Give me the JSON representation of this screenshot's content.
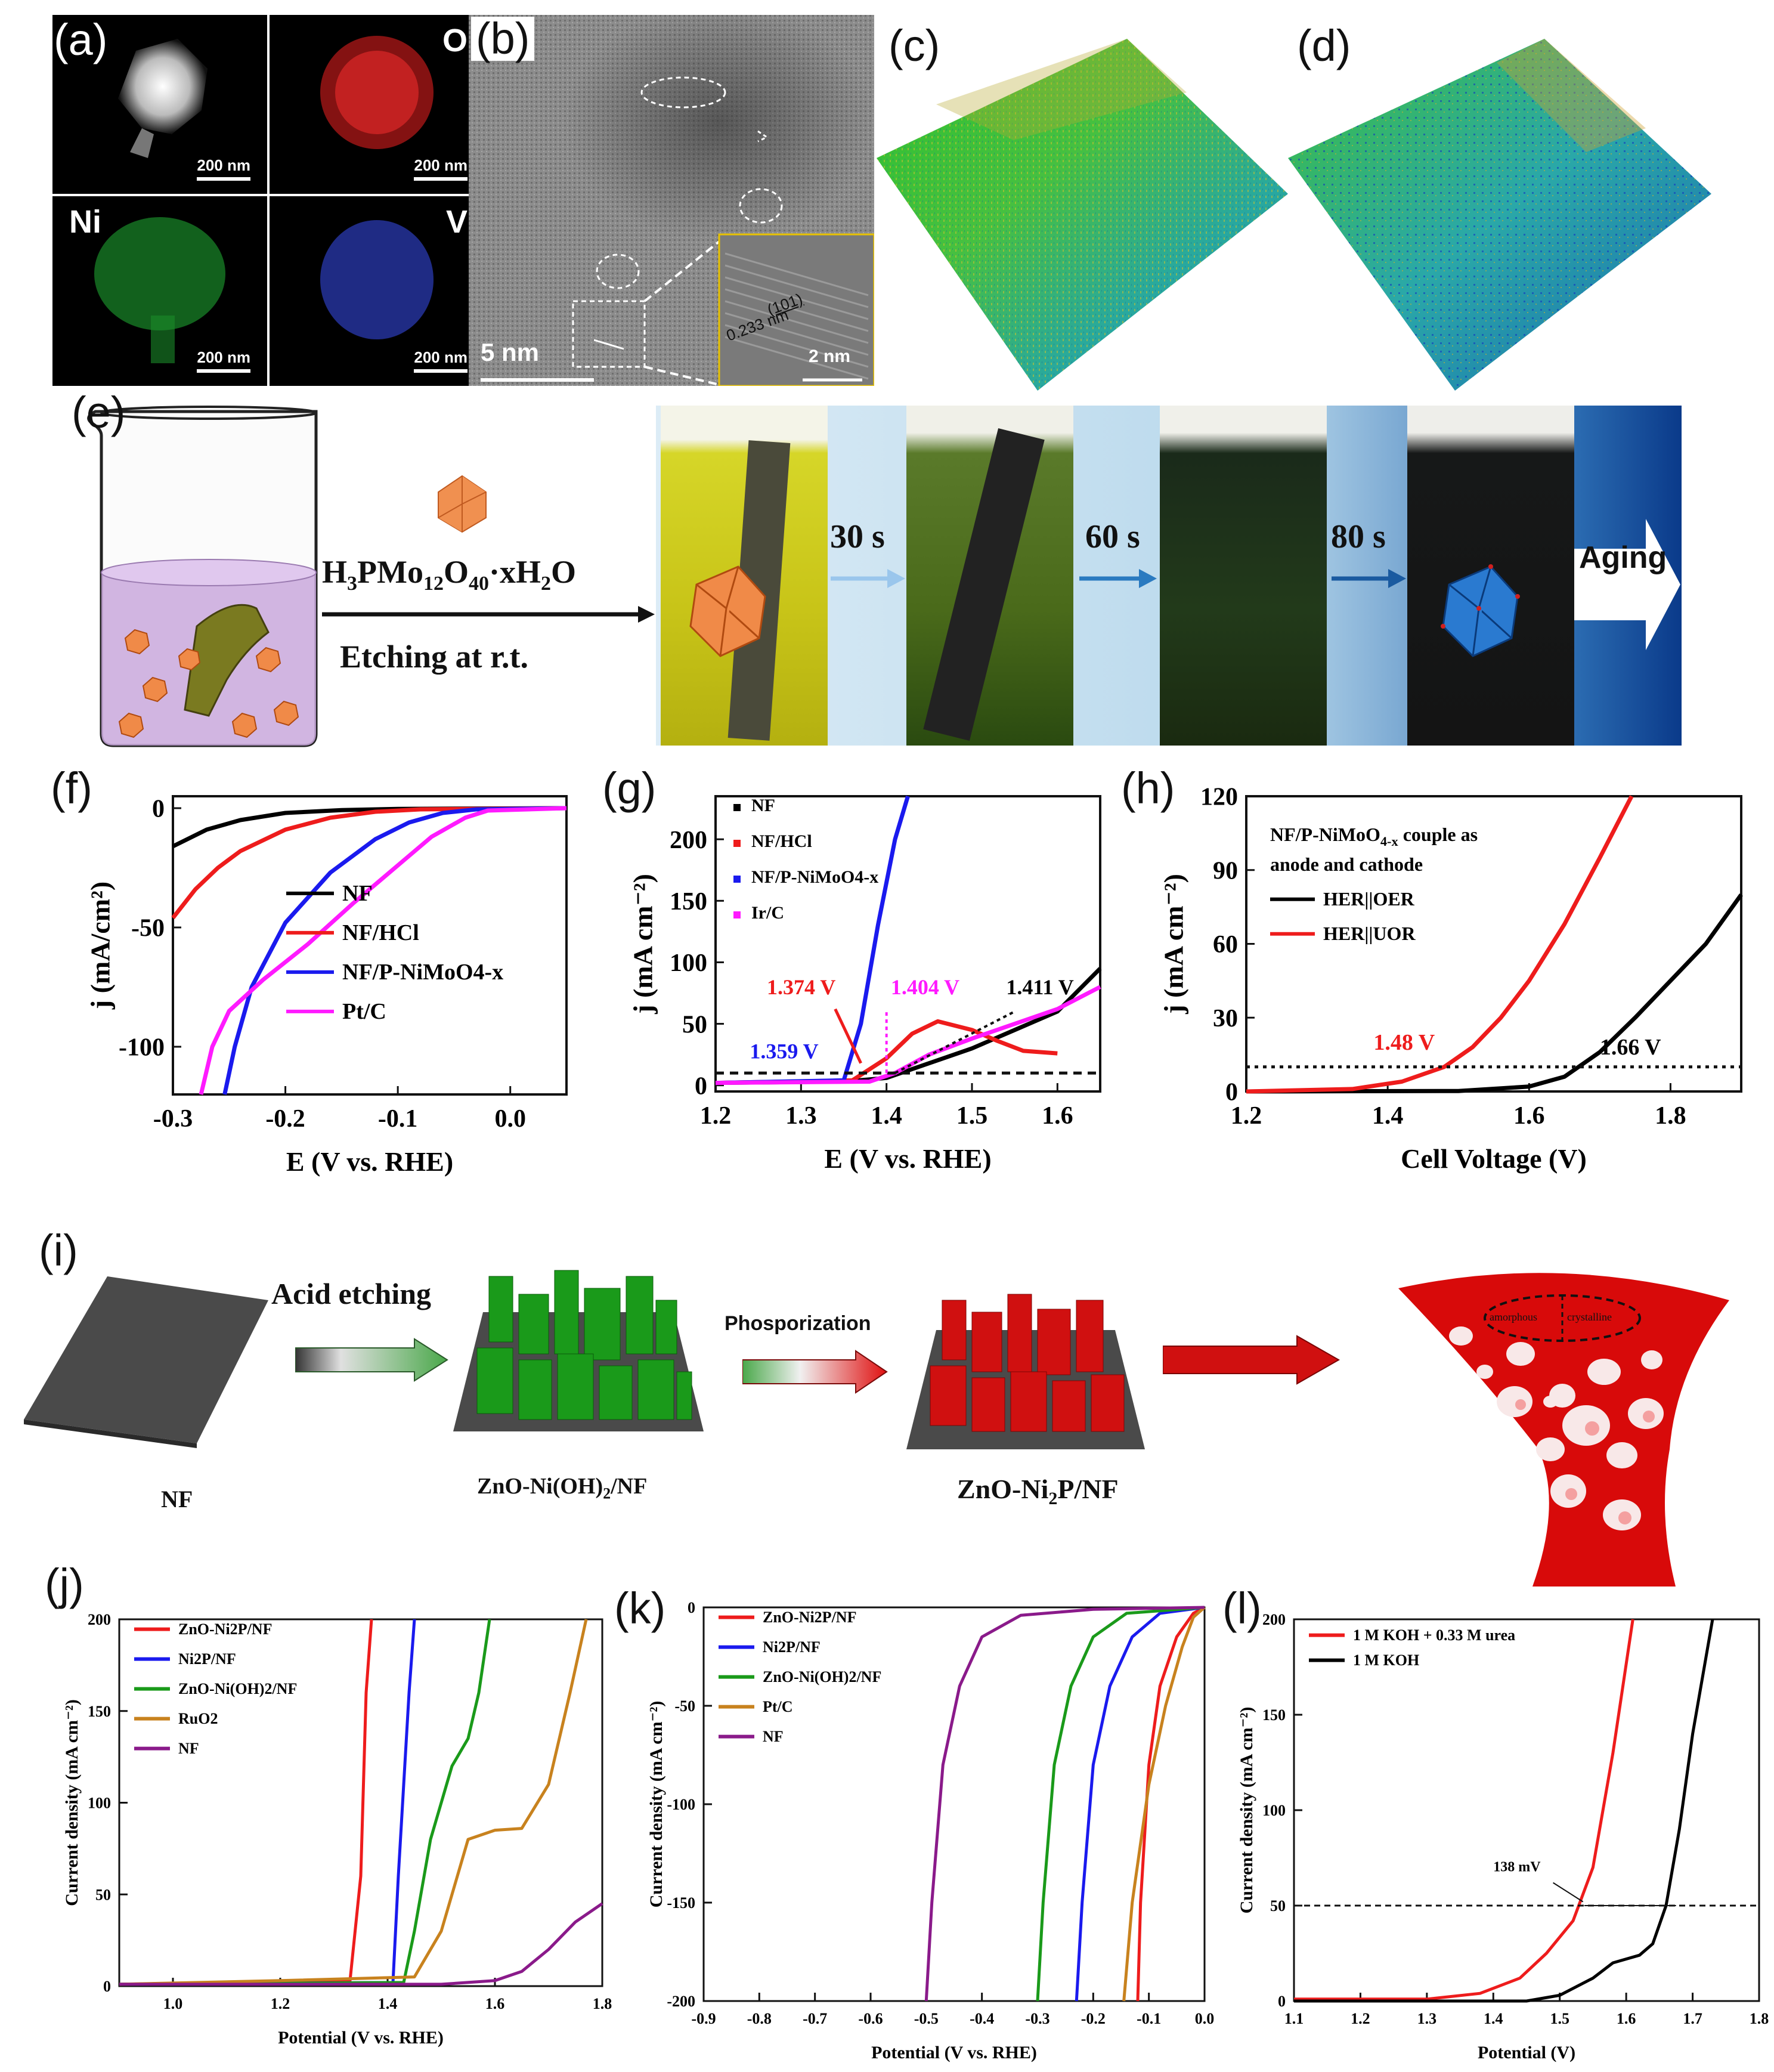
{
  "panels": {
    "a": {
      "label": "(a)",
      "elements": [
        "O",
        "Ni",
        "V"
      ],
      "scale_bar": "200 nm"
    },
    "b": {
      "label": "(b)",
      "scale_bar": "5 nm",
      "inset_scale": "2 nm",
      "plane": "(101)",
      "spacing": "0.233 nm"
    },
    "c": {
      "label": "(c)"
    },
    "d": {
      "label": "(d)"
    },
    "e": {
      "label": "(e)",
      "reagent_main": "H",
      "reagent_sub1": "3",
      "reagent_mid1": "PMo",
      "reagent_sub2": "12",
      "reagent_mid2": "O",
      "reagent_sub3": "40",
      "reagent_tail": "·xH",
      "reagent_sub4": "2",
      "reagent_end": "O",
      "condition": "Etching at r.t.",
      "times": [
        "30 s",
        "60 s",
        "80 s"
      ],
      "final": "Aging"
    },
    "f": {
      "label": "(f)"
    },
    "g": {
      "label": "(g)"
    },
    "h": {
      "label": "(h)"
    },
    "i": {
      "label": "(i)",
      "step1": "Acid etching",
      "step2": "Phosporization",
      "nf": "NF",
      "mid_lhs": "ZnO-Ni(OH)",
      "mid_sub": "2",
      "mid_rhs": "/NF",
      "final_lhs": "ZnO-Ni",
      "final_sub": "2",
      "final_rhs": "P/NF",
      "amorphous": "amorphous",
      "crystalline": "crystalline"
    },
    "j": {
      "label": "(j)"
    },
    "k": {
      "label": "(k)"
    },
    "l": {
      "label": "(l)"
    }
  },
  "colors": {
    "black": "#000000",
    "red": "#ee1c1c",
    "blue": "#1a1aee",
    "magenta": "#ff1aff",
    "green": "#1a9a1a",
    "gold": "#c8821e",
    "purple": "#8a1a8a"
  },
  "chart_data": [
    {
      "id": "f",
      "type": "line",
      "xlabel": "E (V vs. RHE)",
      "ylabel": "j (mA/cm²)",
      "xlim": [
        -0.3,
        0.05
      ],
      "ylim": [
        -120,
        5
      ],
      "xticks": [
        "-0.3",
        "-0.2",
        "-0.1",
        "0.0"
      ],
      "yticks": [
        "0",
        "-50",
        "-100"
      ],
      "series": [
        {
          "name": "NF",
          "color": "black",
          "x": [
            -0.3,
            -0.27,
            -0.24,
            -0.2,
            -0.15,
            -0.1,
            0.05
          ],
          "y": [
            -16,
            -9,
            -5,
            -2,
            -0.8,
            -0.3,
            0
          ]
        },
        {
          "name": "NF/HCl",
          "color": "red",
          "x": [
            -0.3,
            -0.28,
            -0.26,
            -0.24,
            -0.2,
            -0.16,
            -0.12,
            -0.08,
            0.05
          ],
          "y": [
            -46,
            -34,
            -25,
            -18,
            -9,
            -4,
            -1.5,
            -0.5,
            0
          ]
        },
        {
          "name": "NF/P-NiMoO4-x",
          "color": "blue",
          "x": [
            -0.254,
            -0.245,
            -0.23,
            -0.2,
            -0.16,
            -0.12,
            -0.09,
            -0.06,
            -0.03,
            0.05
          ],
          "y": [
            -120,
            -100,
            -75,
            -48,
            -27,
            -13,
            -6,
            -2,
            -0.5,
            0
          ]
        },
        {
          "name": "Pt/C",
          "color": "magenta",
          "x": [
            -0.275,
            -0.265,
            -0.25,
            -0.22,
            -0.18,
            -0.14,
            -0.1,
            -0.07,
            -0.04,
            -0.02,
            0.05
          ],
          "y": [
            -120,
            -100,
            -85,
            -72,
            -57,
            -40,
            -24,
            -12,
            -4,
            -1,
            0
          ]
        }
      ]
    },
    {
      "id": "g",
      "type": "line",
      "xlabel": "E (V vs. RHE)",
      "ylabel": "j (mA cm⁻²)",
      "xlim": [
        1.2,
        1.65
      ],
      "ylim": [
        -5,
        235
      ],
      "xticks": [
        "1.2",
        "1.3",
        "1.4",
        "1.5",
        "1.6"
      ],
      "yticks": [
        "0",
        "50",
        "100",
        "150",
        "200"
      ],
      "annotations": [
        {
          "text": "1.359 V",
          "color": "blue"
        },
        {
          "text": "1.374 V",
          "color": "red"
        },
        {
          "text": "1.404 V",
          "color": "magenta"
        },
        {
          "text": "1.411 V",
          "color": "black"
        }
      ],
      "series": [
        {
          "name": "NF",
          "color": "black",
          "x": [
            1.2,
            1.35,
            1.4,
            1.45,
            1.5,
            1.55,
            1.6,
            1.65
          ],
          "y": [
            2,
            3,
            6,
            18,
            30,
            45,
            60,
            95
          ]
        },
        {
          "name": "NF/HCl",
          "color": "red",
          "x": [
            1.2,
            1.36,
            1.4,
            1.43,
            1.46,
            1.5,
            1.53,
            1.56,
            1.6
          ],
          "y": [
            2,
            4,
            22,
            42,
            52,
            45,
            36,
            28,
            26
          ]
        },
        {
          "name": "NF/P-NiMoO4-x",
          "color": "blue",
          "x": [
            1.2,
            1.35,
            1.37,
            1.39,
            1.41,
            1.425
          ],
          "y": [
            2,
            4,
            50,
            130,
            200,
            238
          ]
        },
        {
          "name": "Ir/C",
          "color": "magenta",
          "x": [
            1.2,
            1.38,
            1.41,
            1.45,
            1.5,
            1.55,
            1.6,
            1.65
          ],
          "y": [
            2,
            3,
            10,
            25,
            38,
            50,
            62,
            80
          ]
        }
      ]
    },
    {
      "id": "h",
      "type": "line",
      "xlabel": "Cell Voltage (V)",
      "ylabel": "j (mA cm⁻²)",
      "xlim": [
        1.2,
        1.9
      ],
      "ylim": [
        0,
        120
      ],
      "xticks": [
        "1.2",
        "1.4",
        "1.6",
        "1.8"
      ],
      "yticks": [
        "0",
        "30",
        "60",
        "90",
        "120"
      ],
      "legend_title": [
        "NF/P-NiMoO",
        "4-x",
        " couple as",
        "anode and cathode"
      ],
      "annotations": [
        {
          "text": "1.48 V",
          "color": "red"
        },
        {
          "text": "1.66 V",
          "color": "black"
        }
      ],
      "series": [
        {
          "name": "HER||OER",
          "color": "black",
          "x": [
            1.2,
            1.5,
            1.6,
            1.65,
            1.7,
            1.75,
            1.8,
            1.85,
            1.9
          ],
          "y": [
            0,
            0.2,
            2,
            6,
            16,
            30,
            45,
            60,
            80
          ]
        },
        {
          "name": "HER||UOR",
          "color": "red",
          "x": [
            1.2,
            1.35,
            1.42,
            1.48,
            1.52,
            1.56,
            1.6,
            1.65,
            1.7,
            1.745
          ],
          "y": [
            0,
            1,
            4,
            10,
            18,
            30,
            45,
            68,
            95,
            120
          ]
        }
      ]
    },
    {
      "id": "j",
      "type": "line",
      "xlabel": "Potential (V vs. RHE)",
      "ylabel": "Current density (mA cm⁻²)",
      "xlim": [
        0.9,
        1.8
      ],
      "ylim": [
        0,
        200
      ],
      "xticks": [
        "1.0",
        "1.2",
        "1.4",
        "1.6",
        "1.8"
      ],
      "yticks": [
        "0",
        "50",
        "100",
        "150",
        "200"
      ],
      "series": [
        {
          "name": "ZnO-Ni2P/NF",
          "color": "red",
          "x": [
            0.9,
            1.33,
            1.35,
            1.36,
            1.37
          ],
          "y": [
            1,
            3,
            60,
            160,
            200
          ]
        },
        {
          "name": "Ni2P/NF",
          "color": "blue",
          "x": [
            0.9,
            1.41,
            1.42,
            1.44,
            1.45
          ],
          "y": [
            1,
            2,
            60,
            160,
            200
          ]
        },
        {
          "name": "ZnO-Ni(OH)2/NF",
          "color": "green",
          "x": [
            0.9,
            1.43,
            1.45,
            1.48,
            1.52,
            1.55,
            1.57,
            1.59
          ],
          "y": [
            1,
            2,
            30,
            80,
            120,
            135,
            160,
            200
          ]
        },
        {
          "name": "RuO2",
          "color": "gold",
          "x": [
            0.9,
            1.2,
            1.45,
            1.5,
            1.55,
            1.6,
            1.65,
            1.7,
            1.74,
            1.77
          ],
          "y": [
            1,
            3,
            5,
            30,
            80,
            85,
            86,
            110,
            160,
            200
          ]
        },
        {
          "name": "NF",
          "color": "purple",
          "x": [
            0.9,
            1.5,
            1.6,
            1.65,
            1.7,
            1.75,
            1.8
          ],
          "y": [
            1,
            1,
            3,
            8,
            20,
            35,
            45
          ]
        }
      ]
    },
    {
      "id": "k",
      "type": "line",
      "xlabel": "Potential (V vs. RHE)",
      "ylabel": "Current density (mA cm⁻²)",
      "xlim": [
        -0.9,
        0.0
      ],
      "ylim": [
        -200,
        0
      ],
      "xticks": [
        "-0.9",
        "-0.8",
        "-0.7",
        "-0.6",
        "-0.5",
        "-0.4",
        "-0.3",
        "-0.2",
        "-0.1",
        "0.0"
      ],
      "yticks": [
        "0",
        "-50",
        "-100",
        "-150",
        "-200"
      ],
      "series": [
        {
          "name": "ZnO-Ni2P/NF",
          "color": "red",
          "x": [
            -0.12,
            -0.115,
            -0.1,
            -0.08,
            -0.05,
            -0.02,
            0
          ],
          "y": [
            -200,
            -150,
            -80,
            -40,
            -15,
            -3,
            0
          ]
        },
        {
          "name": "Ni2P/NF",
          "color": "blue",
          "x": [
            -0.23,
            -0.22,
            -0.2,
            -0.17,
            -0.13,
            -0.08,
            0
          ],
          "y": [
            -200,
            -150,
            -80,
            -40,
            -15,
            -3,
            0
          ]
        },
        {
          "name": "ZnO-Ni(OH)2/NF",
          "color": "green",
          "x": [
            -0.3,
            -0.29,
            -0.27,
            -0.24,
            -0.2,
            -0.14,
            0
          ],
          "y": [
            -200,
            -150,
            -80,
            -40,
            -15,
            -3,
            0
          ]
        },
        {
          "name": "Pt/C",
          "color": "gold",
          "x": [
            -0.145,
            -0.13,
            -0.1,
            -0.07,
            -0.04,
            -0.02,
            0
          ],
          "y": [
            -200,
            -150,
            -90,
            -50,
            -20,
            -5,
            0
          ]
        },
        {
          "name": "NF",
          "color": "purple",
          "x": [
            -0.5,
            -0.49,
            -0.47,
            -0.44,
            -0.4,
            -0.33,
            -0.2,
            0
          ],
          "y": [
            -200,
            -150,
            -80,
            -40,
            -15,
            -4,
            -1,
            0
          ]
        }
      ]
    },
    {
      "id": "l",
      "type": "line",
      "xlabel": "Potential (V)",
      "ylabel": "Current density (mA cm⁻²)",
      "xlim": [
        1.1,
        1.8
      ],
      "ylim": [
        0,
        200
      ],
      "xticks": [
        "1.1",
        "1.2",
        "1.3",
        "1.4",
        "1.5",
        "1.6",
        "1.7",
        "1.8"
      ],
      "yticks": [
        "0",
        "50",
        "100",
        "150",
        "200"
      ],
      "annotations": [
        {
          "text": "138 mV",
          "color": "black"
        }
      ],
      "series": [
        {
          "name": "1 M KOH + 0.33 M urea",
          "color": "red",
          "x": [
            1.1,
            1.3,
            1.38,
            1.44,
            1.48,
            1.52,
            1.55,
            1.58,
            1.61
          ],
          "y": [
            1,
            1,
            4,
            12,
            25,
            42,
            70,
            130,
            200
          ]
        },
        {
          "name": "1 M KOH",
          "color": "black",
          "x": [
            1.1,
            1.45,
            1.5,
            1.55,
            1.58,
            1.62,
            1.64,
            1.66,
            1.68,
            1.7,
            1.73
          ],
          "y": [
            0,
            0,
            3,
            12,
            20,
            24,
            30,
            50,
            90,
            140,
            200
          ]
        }
      ]
    }
  ]
}
